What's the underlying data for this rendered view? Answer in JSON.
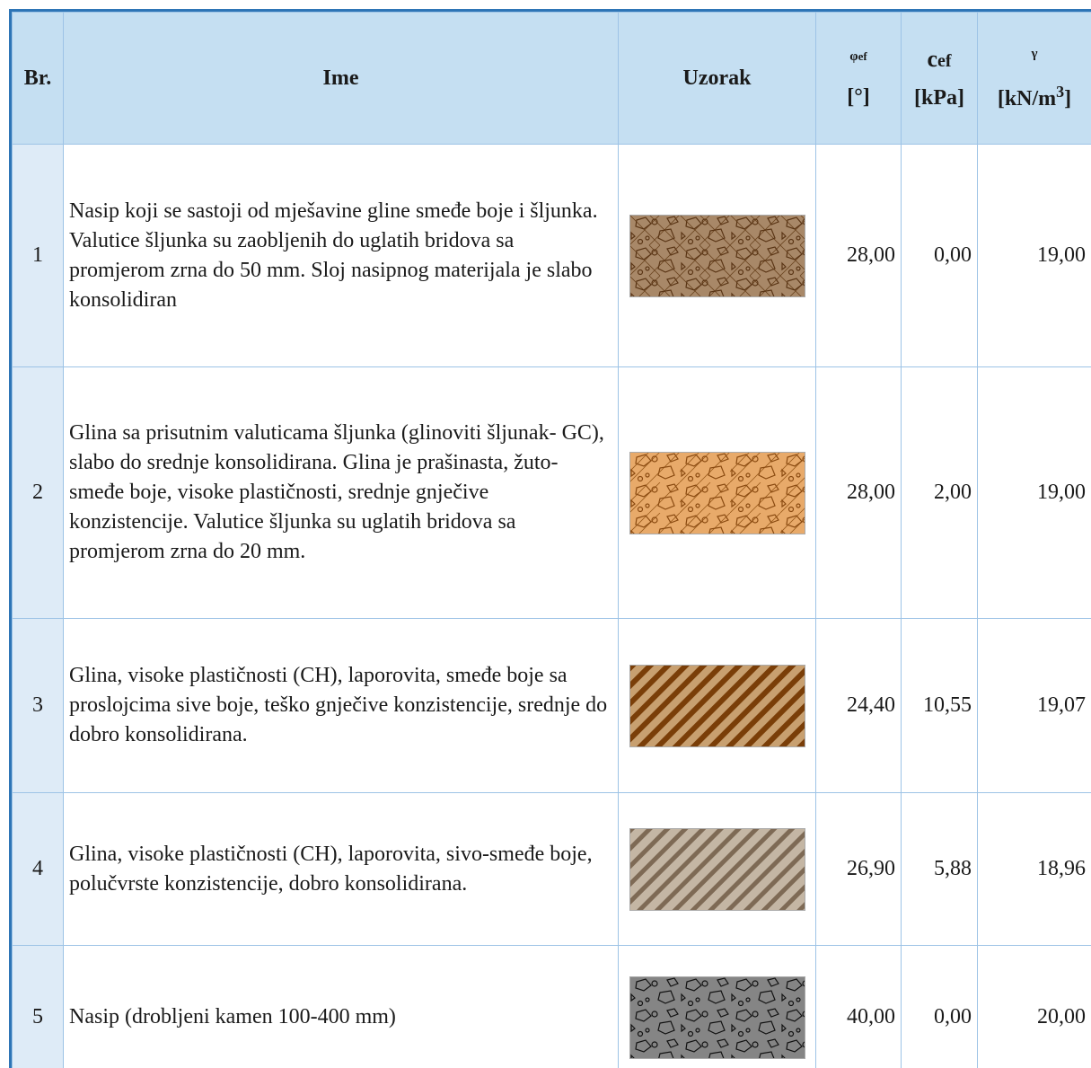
{
  "header": {
    "br": "Br.",
    "ime": "Ime",
    "uzorak": "Uzorak",
    "phi": {
      "symbol": "φ",
      "sub": "ef",
      "unit": "[°]"
    },
    "c": {
      "symbol": "c",
      "sub": "ef",
      "unit": "[kPa]"
    },
    "gamma": {
      "symbol": "γ",
      "unit_text": "[kN/m",
      "unit_sup": "3",
      "unit_end": "]"
    }
  },
  "rows": [
    {
      "no": "1",
      "description": "Nasip koji se sastoji od mješavine gline smeđe boje i šljunka. Valutice šljunka su zaobljenih do uglatih bridova sa promjerom zrna do 50 mm. Sloj nasipnog materijala je slabo konsolidiran",
      "phi": "28,00",
      "c": "0,00",
      "gamma": "19,00"
    },
    {
      "no": "2",
      "description": "Glina sa prisutnim valuticama šljunka (glinoviti šljunak- GC), slabo do srednje konsolidirana.  Glina je prašinasta, žuto-smeđe boje, visoke plastičnosti, srednje gnječive konzistencije. Valutice šljunka su uglatih bridova sa promjerom zrna do 20 mm.",
      "phi": "28,00",
      "c": "2,00",
      "gamma": "19,00"
    },
    {
      "no": "3",
      "description": "Glina, visoke plastičnosti (CH), laporovita, smeđe boje sa proslojcima sive boje,  teško gnječive konzistencije, srednje do dobro konsolidirana.",
      "phi": "24,40",
      "c": "10,55",
      "gamma": "19,07"
    },
    {
      "no": "4",
      "description": "Glina, visoke plastičnosti (CH), laporovita, sivo-smeđe boje, polučvrste konzistencije, dobro konsolidirana.",
      "phi": "26,90",
      "c": "5,88",
      "gamma": "18,96"
    },
    {
      "no": "5",
      "description": "Nasip (drobljeni kamen 100-400 mm)",
      "phi": "40,00",
      "c": "0,00",
      "gamma": "20,00"
    }
  ]
}
